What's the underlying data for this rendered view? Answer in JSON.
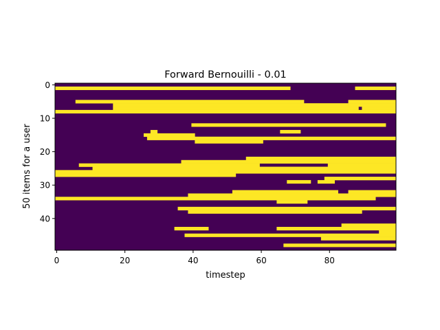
{
  "chart_data": {
    "type": "heatmap",
    "title": "Forward Bernouilli - 0.01",
    "xlabel": "timestep",
    "ylabel": "50 items for a user",
    "xlim": [
      0,
      99
    ],
    "ylim": [
      0,
      49
    ],
    "x_ticks": [
      0,
      20,
      40,
      60,
      80
    ],
    "y_ticks": [
      0,
      10,
      20,
      30,
      40
    ],
    "colors": {
      "zero": "#440154",
      "one": "#fde725"
    },
    "grid": false,
    "legend": "none",
    "rows": [
      [],
      [
        [
          0,
          68
        ],
        [
          88,
          99
        ]
      ],
      [],
      [],
      [],
      [
        [
          6,
          72
        ],
        [
          86,
          99
        ]
      ],
      [
        [
          17,
          85
        ],
        [
          86,
          99
        ]
      ],
      [
        [
          17,
          88
        ],
        [
          90,
          99
        ]
      ],
      [
        [
          0,
          99
        ]
      ],
      [],
      [],
      [],
      [
        [
          40,
          96
        ]
      ],
      [],
      [
        [
          28,
          29
        ],
        [
          66,
          71
        ]
      ],
      [
        [
          26,
          40
        ]
      ],
      [
        [
          27,
          40
        ],
        [
          41,
          99
        ]
      ],
      [
        [
          41,
          60
        ]
      ],
      [],
      [],
      [],
      [],
      [
        [
          56,
          99
        ]
      ],
      [
        [
          37,
          99
        ]
      ],
      [
        [
          7,
          59
        ],
        [
          80,
          99
        ]
      ],
      [
        [
          11,
          99
        ]
      ],
      [
        [
          0,
          47
        ],
        [
          48,
          99
        ]
      ],
      [
        [
          0,
          52
        ]
      ],
      [
        [
          79,
          99
        ]
      ],
      [
        [
          68,
          74
        ],
        [
          77,
          81
        ]
      ],
      [],
      [],
      [
        [
          52,
          82
        ],
        [
          86,
          99
        ]
      ],
      [
        [
          39,
          99
        ]
      ],
      [
        [
          0,
          93
        ]
      ],
      [
        [
          65,
          73
        ]
      ],
      [],
      [
        [
          36,
          99
        ]
      ],
      [
        [
          39,
          61
        ],
        [
          62,
          89
        ]
      ],
      [],
      [],
      [],
      [
        [
          84,
          99
        ]
      ],
      [
        [
          35,
          44
        ],
        [
          65,
          99
        ]
      ],
      [
        [
          95,
          99
        ]
      ],
      [
        [
          38,
          99
        ]
      ],
      [
        [
          78,
          99
        ]
      ],
      [],
      [
        [
          67,
          99
        ]
      ],
      []
    ]
  }
}
